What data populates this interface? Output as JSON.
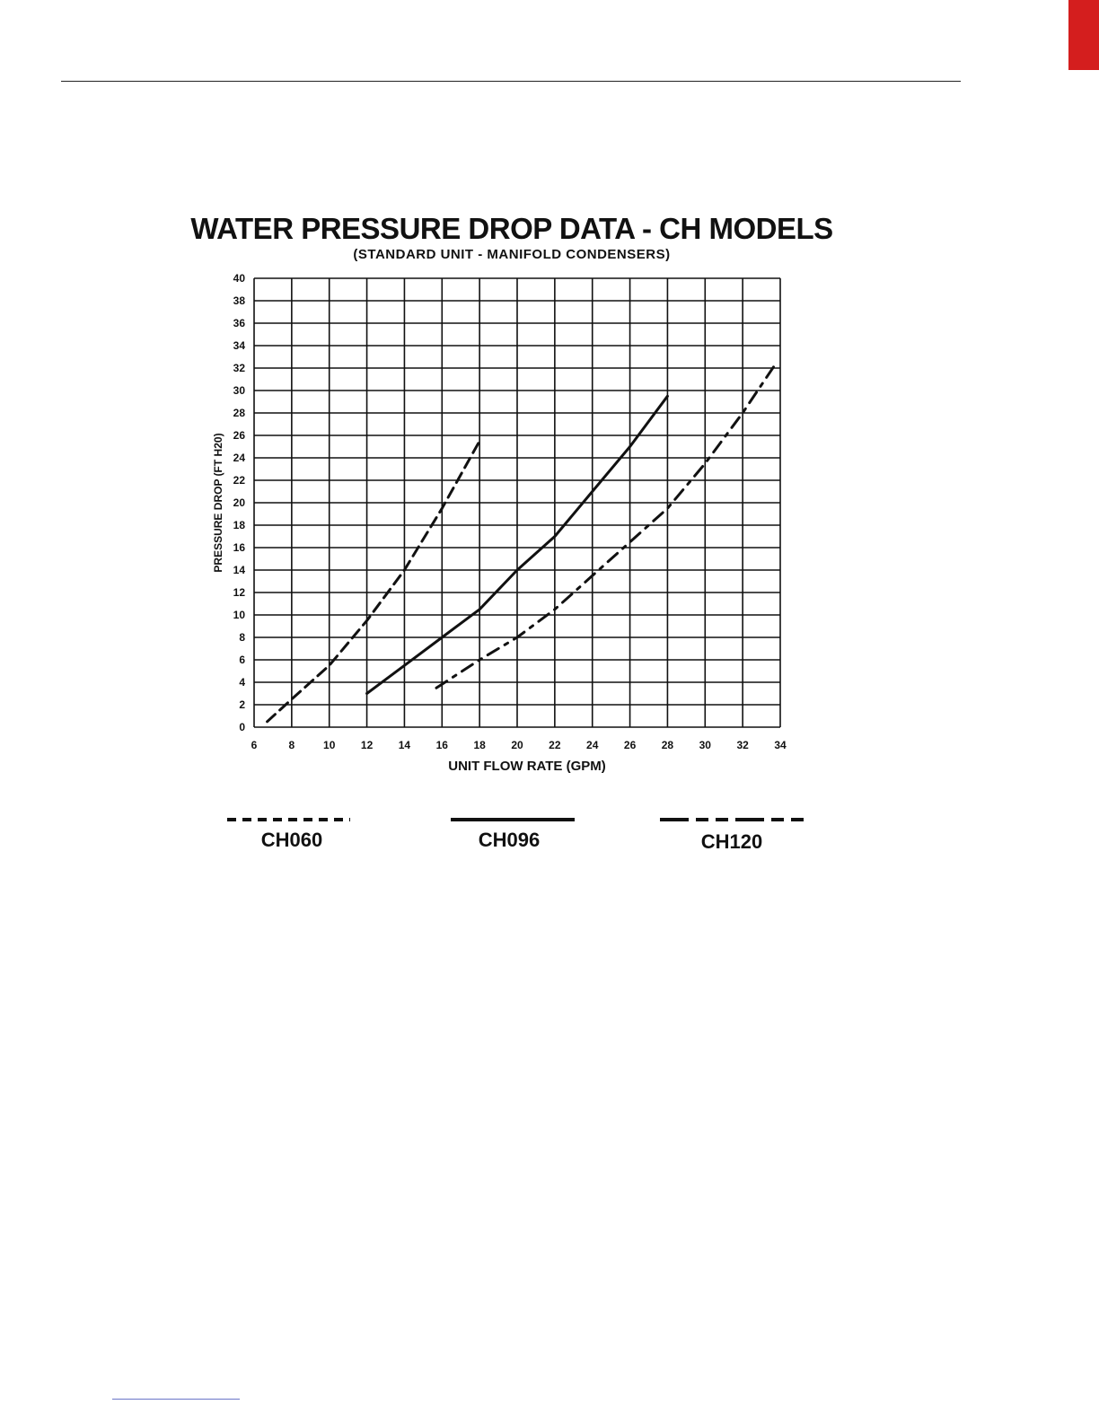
{
  "page": {
    "accent_color": "#d41e1e"
  },
  "chart_data": {
    "type": "line",
    "title": "WATER PRESSURE DROP DATA - CH MODELS",
    "subtitle": "(STANDARD UNIT - MANIFOLD CONDENSERS)",
    "xlabel": "UNIT FLOW RATE (GPM)",
    "ylabel": "PRESSURE DROP (FT H20)",
    "xlim": [
      6,
      34
    ],
    "ylim": [
      0,
      40
    ],
    "x_ticks": [
      "6",
      "8",
      "10",
      "12",
      "14",
      "16",
      "18",
      "20",
      "22",
      "24",
      "26",
      "28",
      "30",
      "32",
      "34"
    ],
    "y_ticks": [
      "0",
      "2",
      "4",
      "6",
      "8",
      "10",
      "12",
      "14",
      "16",
      "18",
      "20",
      "22",
      "24",
      "26",
      "28",
      "30",
      "32",
      "34",
      "36",
      "38",
      "40"
    ],
    "grid": true,
    "legend_position": "bottom",
    "series": [
      {
        "name": "CH060",
        "style": "dashed",
        "x": [
          6.7,
          8,
          10,
          12,
          14,
          16,
          18
        ],
        "y": [
          0.5,
          2.5,
          5.5,
          9.5,
          14,
          19.5,
          25.5
        ]
      },
      {
        "name": "CH096",
        "style": "solid",
        "x": [
          12,
          14,
          16,
          18,
          20,
          22,
          24,
          26,
          28
        ],
        "y": [
          3,
          5.5,
          8,
          10.5,
          14,
          17,
          21,
          25,
          29.5
        ]
      },
      {
        "name": "CH120",
        "style": "dash-dot",
        "x": [
          15.7,
          18,
          20,
          22,
          24,
          26,
          28,
          30,
          32,
          33.8
        ],
        "y": [
          3.5,
          6,
          8,
          10.5,
          13.5,
          16.5,
          19.5,
          23.5,
          28,
          32.5
        ]
      }
    ]
  }
}
